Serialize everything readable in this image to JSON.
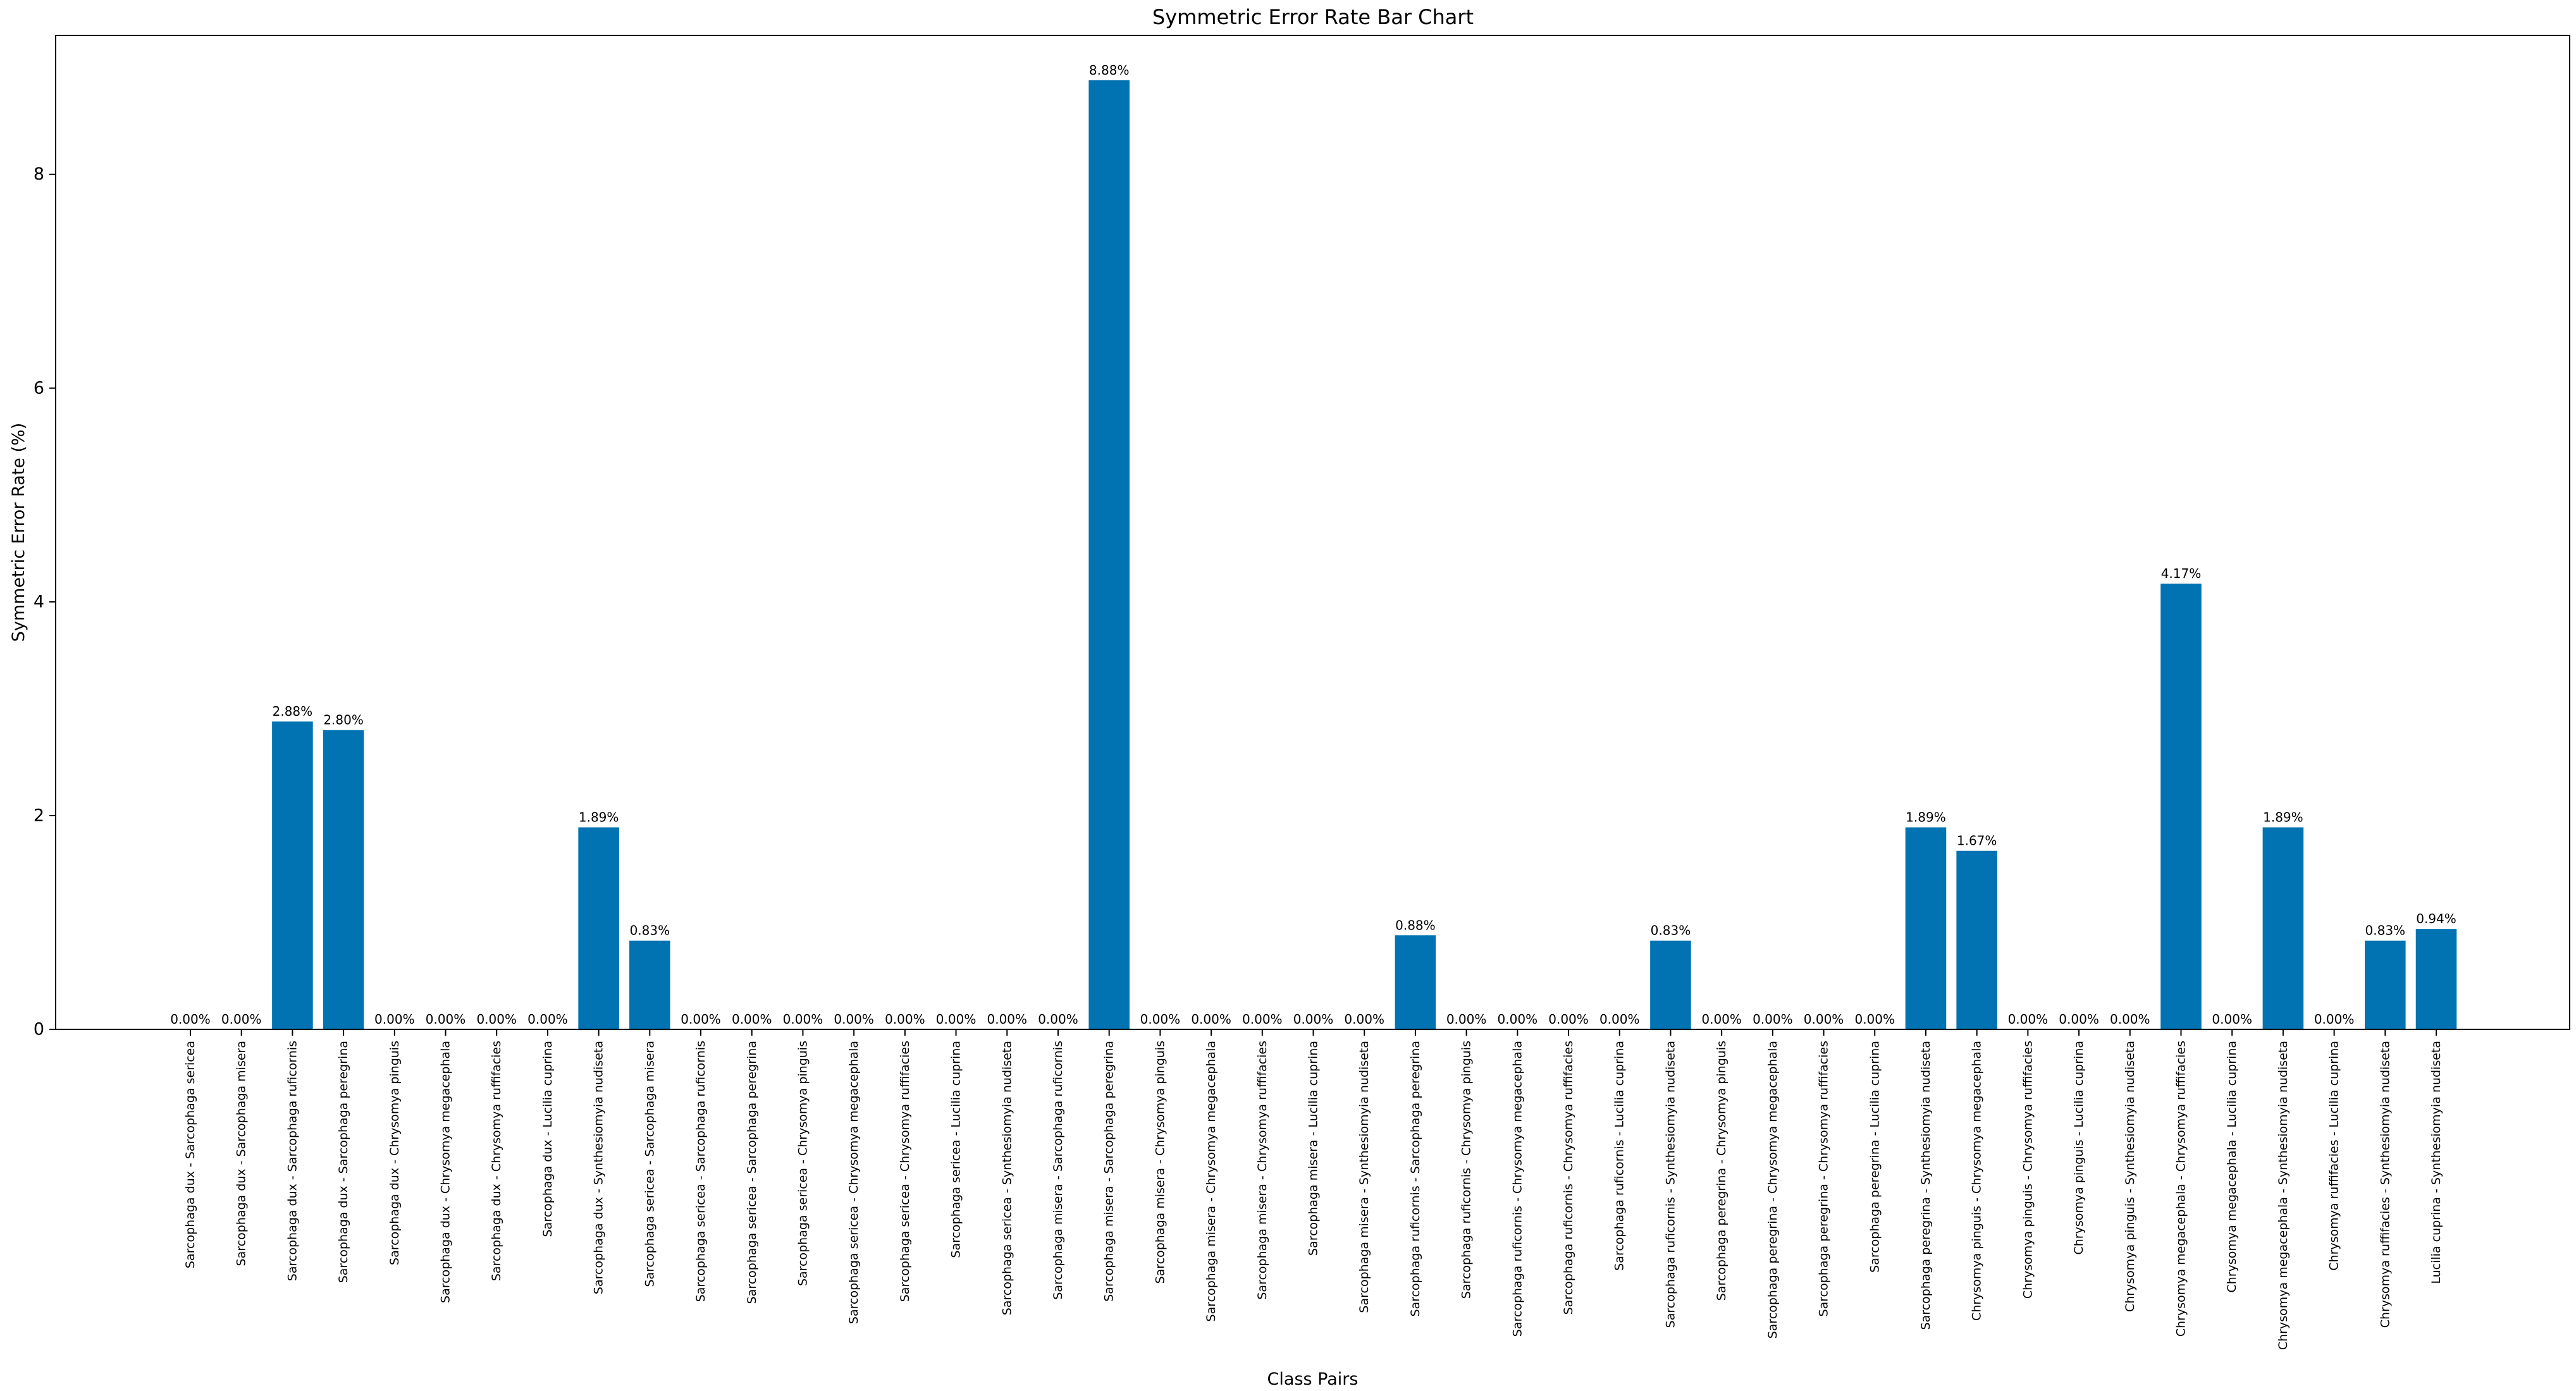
{
  "chart_data": {
    "type": "bar",
    "title": "Symmetric Error Rate Bar Chart",
    "xlabel": "Class Pairs",
    "ylabel": "Symmetric Error Rate (%)",
    "ylim": [
      0,
      9.3
    ],
    "yticks": [
      0,
      2,
      4,
      6,
      8
    ],
    "grid": false,
    "bar_color": "#0173b2",
    "categories": [
      "Sarcophaga dux - Sarcophaga sericea",
      "Sarcophaga dux - Sarcophaga misera",
      "Sarcophaga dux - Sarcophaga ruficornis",
      "Sarcophaga dux - Sarcophaga peregrina",
      "Sarcophaga dux - Chrysomya pinguis",
      "Sarcophaga dux - Chrysomya megacephala",
      "Sarcophaga dux - Chrysomya ruffifacies",
      "Sarcophaga dux - Lucilia cuprina",
      "Sarcophaga dux - Synthesiomyia nudiseta",
      "Sarcophaga sericea - Sarcophaga misera",
      "Sarcophaga sericea - Sarcophaga ruficornis",
      "Sarcophaga sericea - Sarcophaga peregrina",
      "Sarcophaga sericea - Chrysomya pinguis",
      "Sarcophaga sericea - Chrysomya megacephala",
      "Sarcophaga sericea - Chrysomya ruffifacies",
      "Sarcophaga sericea - Lucilia cuprina",
      "Sarcophaga sericea - Synthesiomyia nudiseta",
      "Sarcophaga misera - Sarcophaga ruficornis",
      "Sarcophaga misera - Sarcophaga peregrina",
      "Sarcophaga misera - Chrysomya pinguis",
      "Sarcophaga misera - Chrysomya megacephala",
      "Sarcophaga misera - Chrysomya ruffifacies",
      "Sarcophaga misera - Lucilia cuprina",
      "Sarcophaga misera - Synthesiomyia nudiseta",
      "Sarcophaga ruficornis - Sarcophaga peregrina",
      "Sarcophaga ruficornis - Chrysomya pinguis",
      "Sarcophaga ruficornis - Chrysomya megacephala",
      "Sarcophaga ruficornis - Chrysomya ruffifacies",
      "Sarcophaga ruficornis - Lucilia cuprina",
      "Sarcophaga ruficornis - Synthesiomyia nudiseta",
      "Sarcophaga peregrina - Chrysomya pinguis",
      "Sarcophaga peregrina - Chrysomya megacephala",
      "Sarcophaga peregrina - Chrysomya ruffifacies",
      "Sarcophaga peregrina - Lucilia cuprina",
      "Sarcophaga peregrina - Synthesiomyia nudiseta",
      "Chrysomya pinguis - Chrysomya megacephala",
      "Chrysomya pinguis - Chrysomya ruffifacies",
      "Chrysomya pinguis - Lucilia cuprina",
      "Chrysomya pinguis - Synthesiomyia nudiseta",
      "Chrysomya megacephala - Chrysomya ruffifacies",
      "Chrysomya megacephala - Lucilia cuprina",
      "Chrysomya megacephala - Synthesiomyia nudiseta",
      "Chrysomya ruffifacies - Lucilia cuprina",
      "Chrysomya ruffifacies - Synthesiomyia nudiseta",
      "Lucilia cuprina - Synthesiomyia nudiseta"
    ],
    "values": [
      0,
      0,
      2.88,
      2.8,
      0,
      0,
      0,
      0,
      1.89,
      0.83,
      0,
      0,
      0,
      0,
      0,
      0,
      0,
      0,
      8.88,
      0,
      0,
      0,
      0,
      0,
      0.88,
      0,
      0,
      0,
      0,
      0.83,
      0,
      0,
      0,
      0,
      1.89,
      1.67,
      0,
      0,
      0,
      4.17,
      0,
      1.89,
      0,
      0.83,
      0.94
    ],
    "data_labels": [
      "0.00%",
      "0.00%",
      "2.88%",
      "2.80%",
      "0.00%",
      "0.00%",
      "0.00%",
      "0.00%",
      "1.89%",
      "0.83%",
      "0.00%",
      "0.00%",
      "0.00%",
      "0.00%",
      "0.00%",
      "0.00%",
      "0.00%",
      "0.00%",
      "8.88%",
      "0.00%",
      "0.00%",
      "0.00%",
      "0.00%",
      "0.00%",
      "0.88%",
      "0.00%",
      "0.00%",
      "0.00%",
      "0.00%",
      "0.83%",
      "0.00%",
      "0.00%",
      "0.00%",
      "0.00%",
      "1.89%",
      "1.67%",
      "0.00%",
      "0.00%",
      "0.00%",
      "4.17%",
      "0.00%",
      "1.89%",
      "0.00%",
      "0.83%",
      "0.94%"
    ]
  }
}
